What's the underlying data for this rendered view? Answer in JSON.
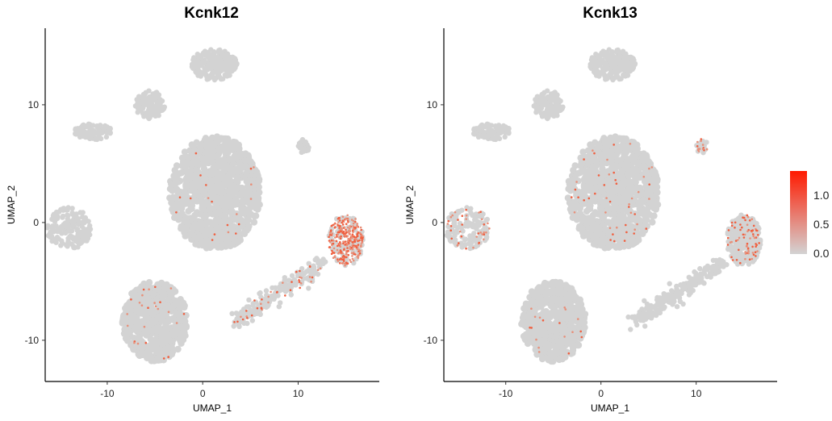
{
  "chart_data": [
    {
      "type": "scatter",
      "title": "Kcnk12",
      "xlabel": "UMAP_1",
      "ylabel": "UMAP_2",
      "xlim": [
        -16.5,
        18.5
      ],
      "ylim": [
        -13.5,
        16.5
      ],
      "xticks": [
        -10,
        0,
        10
      ],
      "yticks": [
        -10,
        0,
        10
      ],
      "tick_labels_x": [
        "-10",
        "0",
        "10"
      ],
      "tick_labels_y": [
        "-10",
        "0",
        "10"
      ],
      "grid": false,
      "base_color": "#d3d3d3",
      "clusters": [
        {
          "name": "top",
          "cx": 1.2,
          "cy": 13.4,
          "rx": 2.4,
          "ry": 1.3,
          "n": 180
        },
        {
          "name": "upper-mid",
          "cx": -5.5,
          "cy": 10.0,
          "rx": 1.6,
          "ry": 1.2,
          "n": 120
        },
        {
          "name": "upper-left",
          "cx": -11.5,
          "cy": 7.7,
          "rx": 2.0,
          "ry": 0.7,
          "n": 90
        },
        {
          "name": "center",
          "cx": 1.3,
          "cy": 2.5,
          "rx": 4.8,
          "ry": 4.8,
          "n": 900
        },
        {
          "name": "left",
          "cx": -14.0,
          "cy": -0.5,
          "rx": 2.3,
          "ry": 1.8,
          "n": 160
        },
        {
          "name": "bottom",
          "cx": -5.0,
          "cy": -8.4,
          "rx": 3.4,
          "ry": 3.4,
          "n": 560
        },
        {
          "name": "right-small",
          "cx": 10.6,
          "cy": 6.5,
          "rx": 0.6,
          "ry": 0.6,
          "n": 30
        },
        {
          "name": "right",
          "cx": 15.0,
          "cy": -1.5,
          "rx": 1.8,
          "ry": 2.2,
          "n": 350
        },
        {
          "name": "strand",
          "cx": 8.0,
          "cy": -6.0,
          "rx": 4.5,
          "ry": 2.0,
          "n": 220
        }
      ],
      "highlight": [
        {
          "cluster": "right",
          "fraction": 0.75
        },
        {
          "cluster": "strand",
          "fraction": 0.18
        },
        {
          "cluster": "bottom",
          "fraction": 0.05
        },
        {
          "cluster": "center",
          "fraction": 0.03
        }
      ]
    },
    {
      "type": "scatter",
      "title": "Kcnk13",
      "xlabel": "UMAP_1",
      "ylabel": "UMAP_2",
      "xlim": [
        -16.5,
        18.5
      ],
      "ylim": [
        -13.5,
        16.5
      ],
      "xticks": [
        -10,
        0,
        10
      ],
      "yticks": [
        -10,
        0,
        10
      ],
      "tick_labels_x": [
        "-10",
        "0",
        "10"
      ],
      "tick_labels_y": [
        "-10",
        "0",
        "10"
      ],
      "grid": false,
      "base_color": "#d3d3d3",
      "clusters": [
        {
          "name": "top",
          "cx": 1.2,
          "cy": 13.4,
          "rx": 2.4,
          "ry": 1.3,
          "n": 180
        },
        {
          "name": "upper-mid",
          "cx": -5.5,
          "cy": 10.0,
          "rx": 1.6,
          "ry": 1.2,
          "n": 120
        },
        {
          "name": "upper-left",
          "cx": -11.5,
          "cy": 7.7,
          "rx": 2.0,
          "ry": 0.7,
          "n": 90
        },
        {
          "name": "center",
          "cx": 1.3,
          "cy": 2.5,
          "rx": 4.8,
          "ry": 4.8,
          "n": 900
        },
        {
          "name": "left",
          "cx": -14.0,
          "cy": -0.5,
          "rx": 2.3,
          "ry": 1.8,
          "n": 160
        },
        {
          "name": "bottom",
          "cx": -5.0,
          "cy": -8.4,
          "rx": 3.4,
          "ry": 3.4,
          "n": 560
        },
        {
          "name": "right-small",
          "cx": 10.6,
          "cy": 6.5,
          "rx": 0.6,
          "ry": 0.6,
          "n": 30
        },
        {
          "name": "right",
          "cx": 15.0,
          "cy": -1.5,
          "rx": 1.8,
          "ry": 2.2,
          "n": 350
        },
        {
          "name": "strand",
          "cx": 8.0,
          "cy": -6.0,
          "rx": 4.5,
          "ry": 2.0,
          "n": 220
        }
      ],
      "highlight": [
        {
          "cluster": "right",
          "fraction": 0.2
        },
        {
          "cluster": "left",
          "fraction": 0.25
        },
        {
          "cluster": "center",
          "fraction": 0.05
        },
        {
          "cluster": "bottom",
          "fraction": 0.04
        },
        {
          "cluster": "right-small",
          "fraction": 0.25
        }
      ]
    }
  ],
  "legend": {
    "labels": [
      "1.0",
      "0.5",
      "0.0"
    ],
    "low_color": "#d3d3d3",
    "high_color": "#ff0000"
  }
}
